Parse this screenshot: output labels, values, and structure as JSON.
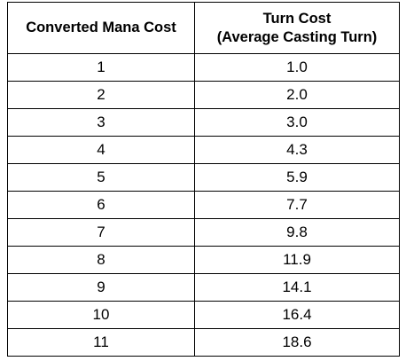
{
  "table": {
    "headers": {
      "col1": "Converted Mana Cost",
      "col2_line1": "Turn Cost",
      "col2_line2": "(Average Casting Turn)"
    },
    "rows": [
      {
        "cmc": "1",
        "turn_cost": "1.0"
      },
      {
        "cmc": "2",
        "turn_cost": "2.0"
      },
      {
        "cmc": "3",
        "turn_cost": "3.0"
      },
      {
        "cmc": "4",
        "turn_cost": "4.3"
      },
      {
        "cmc": "5",
        "turn_cost": "5.9"
      },
      {
        "cmc": "6",
        "turn_cost": "7.7"
      },
      {
        "cmc": "7",
        "turn_cost": "9.8"
      },
      {
        "cmc": "8",
        "turn_cost": "11.9"
      },
      {
        "cmc": "9",
        "turn_cost": "14.1"
      },
      {
        "cmc": "10",
        "turn_cost": "16.4"
      },
      {
        "cmc": "11",
        "turn_cost": "18.6"
      }
    ]
  }
}
